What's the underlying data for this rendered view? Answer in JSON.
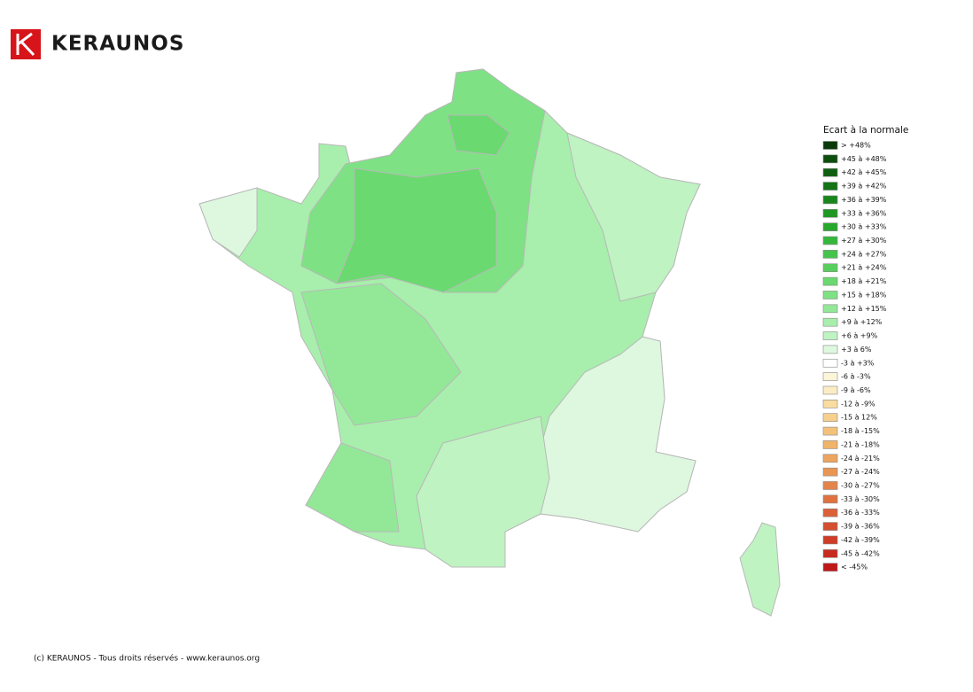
{
  "header": {
    "brand": "KERAUNOS"
  },
  "legend": {
    "title": "Ecart à la normale",
    "items": [
      {
        "label": "> +48%",
        "color": "#0a3a0a"
      },
      {
        "label": "+45 à +48%",
        "color": "#0d4d0d"
      },
      {
        "label": "+42 à +45%",
        "color": "#0f5f10"
      },
      {
        "label": "+39 à +42%",
        "color": "#137316"
      },
      {
        "label": "+36 à +39%",
        "color": "#18861b"
      },
      {
        "label": "+33 à +36%",
        "color": "#1e9822"
      },
      {
        "label": "+30 à +33%",
        "color": "#28a82c"
      },
      {
        "label": "+27 à +30%",
        "color": "#35b83a"
      },
      {
        "label": "+24 à +27%",
        "color": "#45c44b"
      },
      {
        "label": "+21 à +24%",
        "color": "#57cf5d"
      },
      {
        "label": "+18 à +21%",
        "color": "#6ad970"
      },
      {
        "label": "+15 à +18%",
        "color": "#7ee184"
      },
      {
        "label": "+12 à +15%",
        "color": "#93e898"
      },
      {
        "label": "+9 à +12%",
        "color": "#a8eeac"
      },
      {
        "label": "+6 à +9%",
        "color": "#bff3c2"
      },
      {
        "label": "+3 à 6%",
        "color": "#def8df"
      },
      {
        "label": "-3 à +3%",
        "color": "#ffffff"
      },
      {
        "label": "-6 à -3%",
        "color": "#fdf5d8"
      },
      {
        "label": "-9 à -6%",
        "color": "#fbecc4"
      },
      {
        "label": "-12 à -9%",
        "color": "#f8dca0"
      },
      {
        "label": "-15 à 12%",
        "color": "#f6d08c"
      },
      {
        "label": "-18 à -15%",
        "color": "#f3c27a"
      },
      {
        "label": "-21 à -18%",
        "color": "#f0b36a"
      },
      {
        "label": "-24 à -21%",
        "color": "#eda55f"
      },
      {
        "label": "-27 à -24%",
        "color": "#e99554"
      },
      {
        "label": "-30 à -27%",
        "color": "#e5844a"
      },
      {
        "label": "-33 à -30%",
        "color": "#e07240"
      },
      {
        "label": "-36 à -33%",
        "color": "#db6037"
      },
      {
        "label": "-39 à -36%",
        "color": "#d54e2f"
      },
      {
        "label": "-42 à -39%",
        "color": "#cf3c27"
      },
      {
        "label": "-45 à -42%",
        "color": "#c82b20"
      },
      {
        "label": "< -45%",
        "color": "#c01818"
      }
    ]
  },
  "footer": {
    "text": "(c) KERAUNOS - Tous droits réservés - www.keraunos.org"
  }
}
